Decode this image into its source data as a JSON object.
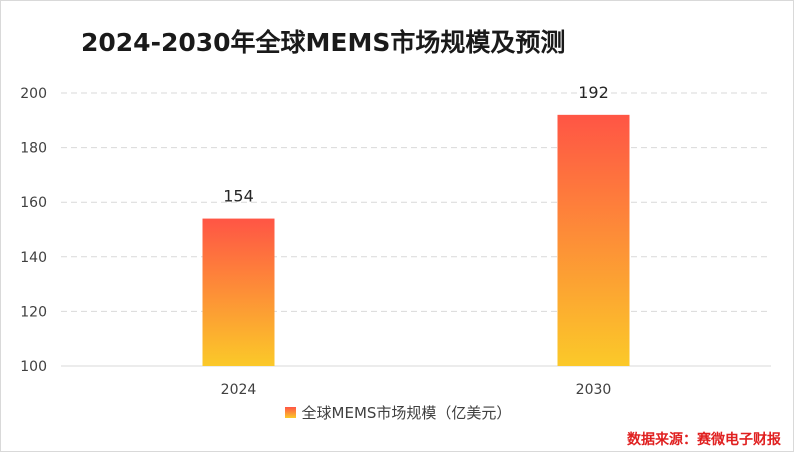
{
  "chart_data": {
    "type": "bar",
    "title": "2024-2030年全球MEMS市场规模及预测",
    "categories": [
      "2024",
      "2030"
    ],
    "series": [
      {
        "name": "全球MEMS市场规模（亿美元）",
        "values": [
          154,
          192
        ]
      }
    ],
    "data_labels": [
      "154",
      "192"
    ],
    "ylim": [
      100,
      200
    ],
    "yticks": [
      100,
      120,
      140,
      160,
      180,
      200
    ],
    "ytick_labels": [
      "100",
      "120",
      "140",
      "160",
      "180",
      "200"
    ],
    "xlabel": "",
    "ylabel": "",
    "grid": true,
    "legend": "bottom-center",
    "colors": {
      "bar_top": "#ff5545",
      "bar_bottom": "#fbc929",
      "grid": "#d9d9d9",
      "axis_text": "#404040"
    }
  },
  "source_note": "数据来源：赛微电子财报"
}
